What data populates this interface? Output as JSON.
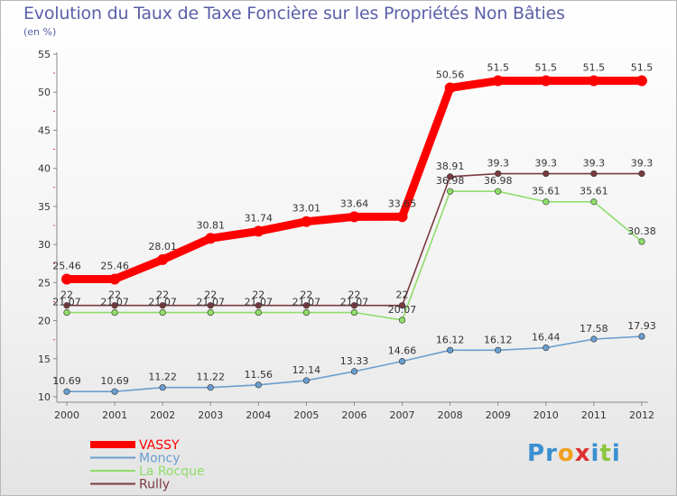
{
  "chart_data": {
    "type": "line",
    "title": "Evolution du Taux de Taxe Foncière sur les Propriétés Non Bâties",
    "ylabel": "(en %)",
    "xlabel": "",
    "categories": [
      "2000",
      "2001",
      "2002",
      "2003",
      "2004",
      "2005",
      "2006",
      "2007",
      "2008",
      "2009",
      "2010",
      "2011",
      "2012"
    ],
    "ylim": [
      10,
      55
    ],
    "yticks": [
      10,
      15,
      20,
      25,
      30,
      35,
      40,
      45,
      50,
      55
    ],
    "grid": false,
    "legend_position": "bottom-left",
    "series": [
      {
        "name": "VASSY",
        "color": "#ff0000",
        "bold": true,
        "values": [
          25.46,
          25.46,
          28.01,
          30.81,
          31.74,
          33.01,
          33.64,
          33.65,
          50.56,
          51.5,
          51.5,
          51.5,
          51.5
        ],
        "labels": [
          "25.46",
          "25.46",
          "28.01",
          "30.81",
          "31.74",
          "33.01",
          "33.64",
          "33.65",
          "50.56",
          "51.5",
          "51.5",
          "51.5",
          "51.5"
        ]
      },
      {
        "name": "Moncy",
        "color": "#6a9ecf",
        "values": [
          10.69,
          10.69,
          11.22,
          11.22,
          11.56,
          12.14,
          13.33,
          14.66,
          16.12,
          16.12,
          16.44,
          17.58,
          17.93
        ],
        "labels": [
          "10.69",
          "10.69",
          "11.22",
          "11.22",
          "11.56",
          "12.14",
          "13.33",
          "14.66",
          "16.12",
          "16.12",
          "16.44",
          "17.58",
          "17.93"
        ]
      },
      {
        "name": "La Rocque",
        "color": "#8fdd6a",
        "values": [
          21.07,
          21.07,
          21.07,
          21.07,
          21.07,
          21.07,
          21.07,
          20.07,
          36.98,
          36.98,
          35.61,
          35.61,
          30.38
        ],
        "labels": [
          "21.07",
          "21.07",
          "21.07",
          "21.07",
          "21.07",
          "21.07",
          "21.07",
          "20.07",
          "36.98",
          "36.98",
          "35.61",
          "35.61",
          "30.38"
        ]
      },
      {
        "name": "Rully",
        "color": "#7a3a40",
        "values": [
          22,
          22,
          22,
          22,
          22,
          22,
          22,
          22,
          38.91,
          39.3,
          39.3,
          39.3,
          39.3
        ],
        "labels": [
          "22",
          "22",
          "22",
          "22",
          "22",
          "22",
          "22",
          "22",
          "38.91",
          "39.3",
          "39.3",
          "39.3",
          "39.3"
        ]
      }
    ]
  },
  "logo": {
    "text": "Proxiti",
    "letters": [
      "P",
      "r",
      "o",
      "x",
      "i",
      "t",
      "i"
    ],
    "colors": [
      "#3a8fd0",
      "#3a8fd0",
      "#f0a020",
      "#e03030",
      "#3a8fd0",
      "#8cc63f",
      "#3a8fd0"
    ]
  }
}
